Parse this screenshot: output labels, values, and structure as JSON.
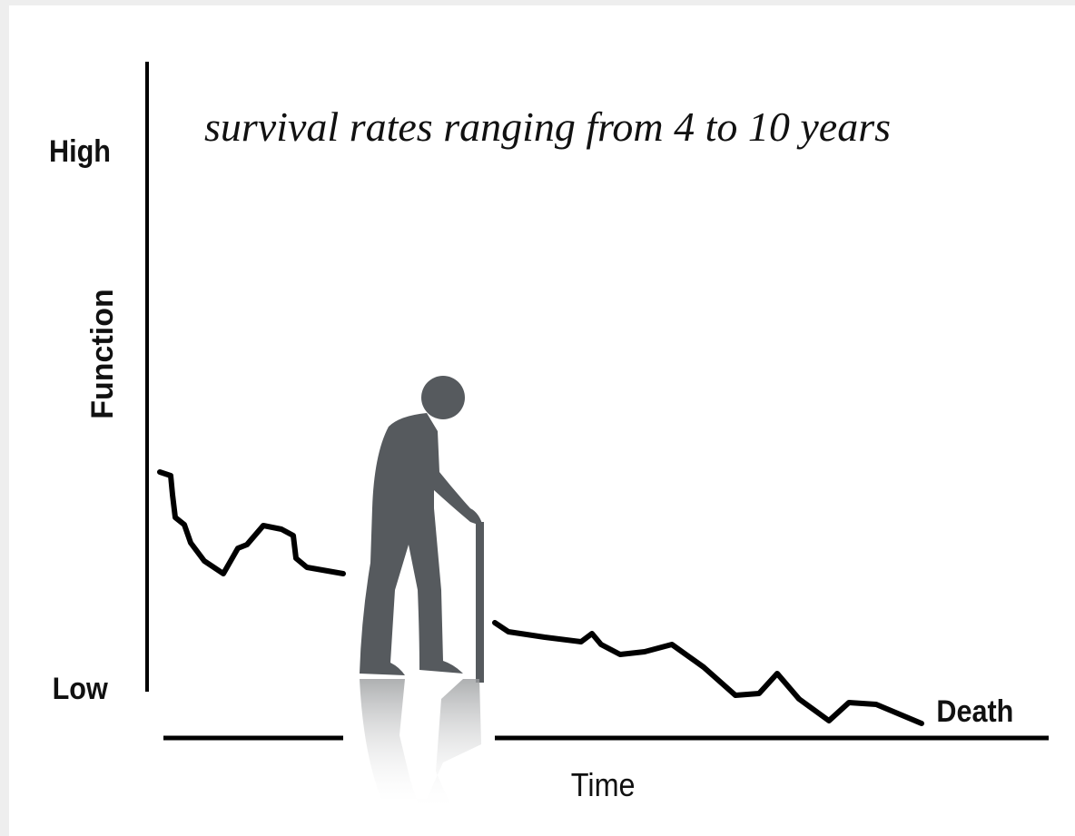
{
  "title": "survival rates ranging from 4 to 10 years",
  "y_axis": {
    "label": "Function",
    "high": "High",
    "low": "Low"
  },
  "x_axis": {
    "label": "Time",
    "end": "Death"
  }
}
